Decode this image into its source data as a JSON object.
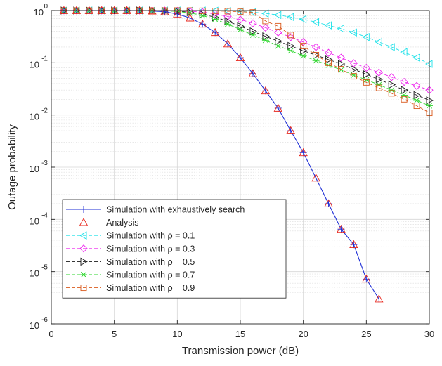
{
  "chart_data": {
    "type": "line",
    "xlabel": "Transmission power (dB)",
    "ylabel": "Outage probability",
    "xlim": [
      0,
      30
    ],
    "ylim": [
      1e-06,
      1
    ],
    "yscale": "log",
    "grid": true,
    "legend_position": "bottom-left",
    "x_ticks": [
      "0",
      "5",
      "10",
      "15",
      "20",
      "25",
      "30"
    ],
    "y_ticks": [
      {
        "base": "10",
        "exp": "-6",
        "value": 1e-06
      },
      {
        "base": "10",
        "exp": "-5",
        "value": 1e-05
      },
      {
        "base": "10",
        "exp": "-4",
        "value": 0.0001
      },
      {
        "base": "10",
        "exp": "-3",
        "value": 0.001
      },
      {
        "base": "10",
        "exp": "-2",
        "value": 0.01
      },
      {
        "base": "10",
        "exp": "-1",
        "value": 0.1
      },
      {
        "base": "10",
        "exp": "0",
        "value": 1
      }
    ],
    "series": [
      {
        "name": "Simulation with exhaustively search",
        "color": "#1f2fd6",
        "marker": "plus",
        "line": "solid",
        "x": [
          1,
          2,
          3,
          4,
          5,
          6,
          7,
          8,
          9,
          10,
          11,
          12,
          13,
          14,
          15,
          16,
          17,
          18,
          19,
          20,
          21,
          22,
          23,
          24,
          25,
          26
        ],
        "y": [
          1,
          1,
          1,
          1,
          1,
          1,
          1,
          0.98,
          0.95,
          0.86,
          0.72,
          0.55,
          0.38,
          0.23,
          0.125,
          0.062,
          0.029,
          0.0135,
          0.005,
          0.0019,
          0.00062,
          0.0002,
          6.5e-05,
          3.3e-05,
          7.2e-06,
          3e-06
        ]
      },
      {
        "name": "Analysis",
        "color": "#e8281e",
        "marker": "triangle-up",
        "line": "none",
        "x": [
          1,
          2,
          3,
          4,
          5,
          6,
          7,
          8,
          9,
          10,
          11,
          12,
          13,
          14,
          15,
          16,
          17,
          18,
          19,
          20,
          21,
          22,
          23,
          24,
          25,
          26
        ],
        "y": [
          1,
          1,
          1,
          1,
          1,
          1,
          1,
          0.98,
          0.95,
          0.86,
          0.72,
          0.55,
          0.38,
          0.23,
          0.125,
          0.062,
          0.029,
          0.0135,
          0.005,
          0.0019,
          0.00062,
          0.0002,
          6.5e-05,
          3.3e-05,
          7.2e-06,
          3e-06
        ]
      },
      {
        "name": "Simulation with ρ = 0.1",
        "color": "#19e0e8",
        "marker": "triangle-left",
        "line": "dashed",
        "x": [
          1,
          2,
          3,
          4,
          5,
          6,
          7,
          8,
          9,
          10,
          11,
          12,
          13,
          14,
          15,
          16,
          17,
          18,
          19,
          20,
          21,
          22,
          23,
          24,
          25,
          26,
          27,
          28,
          29,
          30
        ],
        "y": [
          1,
          1,
          1,
          1,
          1,
          1,
          1,
          1,
          1,
          1,
          1,
          1,
          0.99,
          0.98,
          0.96,
          0.93,
          0.88,
          0.82,
          0.75,
          0.68,
          0.6,
          0.52,
          0.45,
          0.38,
          0.31,
          0.25,
          0.2,
          0.16,
          0.125,
          0.095
        ]
      },
      {
        "name": "Simulation with ρ = 0.3",
        "color": "#ee22ee",
        "marker": "diamond",
        "line": "dashed",
        "x": [
          1,
          2,
          3,
          4,
          5,
          6,
          7,
          8,
          9,
          10,
          11,
          12,
          13,
          14,
          15,
          16,
          17,
          18,
          19,
          20,
          21,
          22,
          23,
          24,
          25,
          26,
          27,
          28,
          29,
          30
        ],
        "y": [
          1,
          1,
          1,
          1,
          1,
          1,
          1,
          1,
          1,
          0.99,
          0.97,
          0.93,
          0.86,
          0.77,
          0.67,
          0.57,
          0.47,
          0.38,
          0.31,
          0.25,
          0.2,
          0.155,
          0.125,
          0.098,
          0.08,
          0.065,
          0.053,
          0.043,
          0.036,
          0.03
        ]
      },
      {
        "name": "Simulation with ρ = 0.5",
        "color": "#1a1a1a",
        "marker": "triangle-right",
        "line": "dashed",
        "x": [
          1,
          2,
          3,
          4,
          5,
          6,
          7,
          8,
          9,
          10,
          11,
          12,
          13,
          14,
          15,
          16,
          17,
          18,
          19,
          20,
          21,
          22,
          23,
          24,
          25,
          26,
          27,
          28,
          29,
          30
        ],
        "y": [
          1,
          1,
          1,
          1,
          1,
          1,
          1,
          1,
          0.99,
          0.97,
          0.93,
          0.85,
          0.74,
          0.62,
          0.5,
          0.4,
          0.32,
          0.26,
          0.21,
          0.17,
          0.14,
          0.115,
          0.095,
          0.075,
          0.06,
          0.048,
          0.038,
          0.03,
          0.024,
          0.019
        ]
      },
      {
        "name": "Simulation with ρ = 0.7",
        "color": "#2cd62c",
        "marker": "asterisk",
        "line": "dashed",
        "x": [
          1,
          2,
          3,
          4,
          5,
          6,
          7,
          8,
          9,
          10,
          11,
          12,
          13,
          14,
          15,
          16,
          17,
          18,
          19,
          20,
          21,
          22,
          23,
          24,
          25,
          26,
          27,
          28,
          29,
          30
        ],
        "y": [
          1,
          1,
          1,
          1,
          1,
          1,
          1,
          1,
          0.99,
          0.96,
          0.9,
          0.8,
          0.68,
          0.55,
          0.43,
          0.34,
          0.27,
          0.21,
          0.17,
          0.135,
          0.11,
          0.09,
          0.073,
          0.058,
          0.047,
          0.038,
          0.03,
          0.024,
          0.019,
          0.015
        ]
      },
      {
        "name": "Simulation with ρ = 0.9",
        "color": "#d9591c",
        "marker": "square",
        "line": "dashed",
        "x": [
          1,
          2,
          3,
          4,
          5,
          6,
          7,
          8,
          9,
          10,
          11,
          12,
          13,
          14,
          15,
          16,
          17,
          18,
          19,
          20,
          21,
          22,
          23,
          24,
          25,
          26,
          27,
          28,
          29,
          30
        ],
        "y": [
          1,
          1,
          1,
          1,
          1,
          1,
          1,
          1,
          1,
          1,
          1,
          0.99,
          0.98,
          0.97,
          0.95,
          0.92,
          0.63,
          0.5,
          0.34,
          0.21,
          0.14,
          0.1,
          0.075,
          0.055,
          0.042,
          0.033,
          0.026,
          0.02,
          0.015,
          0.011
        ]
      }
    ]
  }
}
